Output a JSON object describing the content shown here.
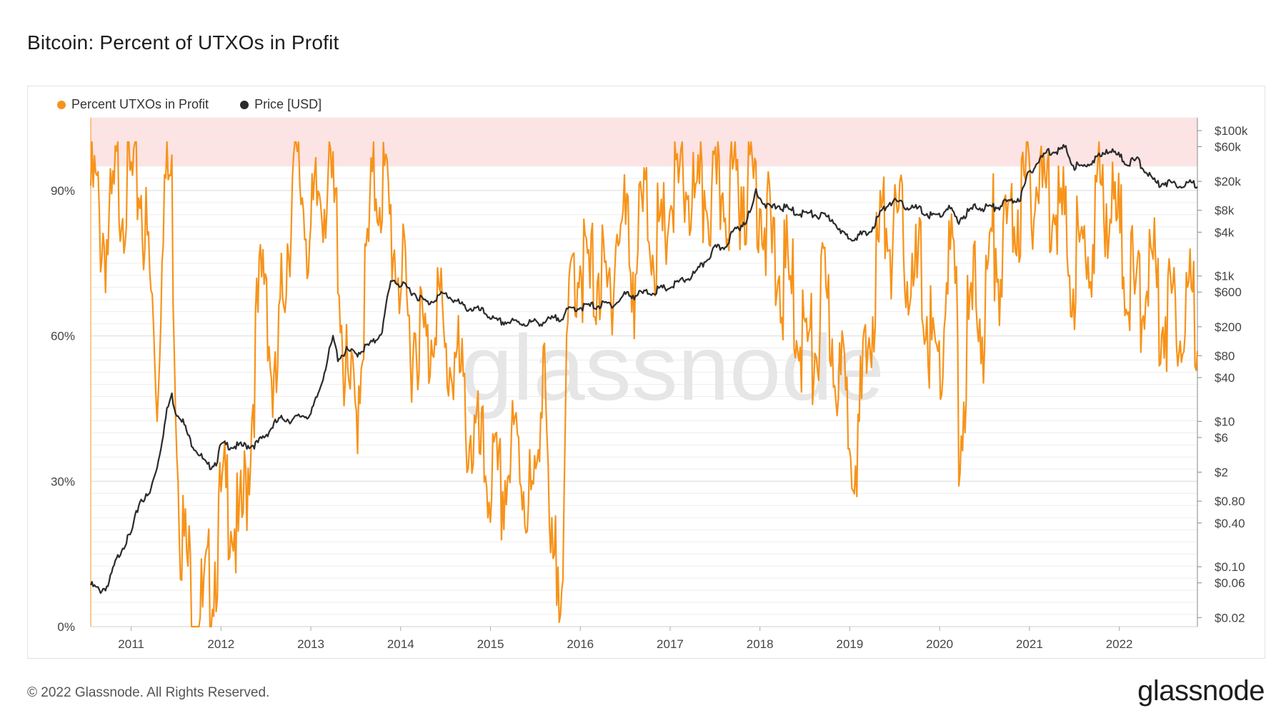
{
  "title": "Bitcoin: Percent of UTXOs in Profit",
  "footer": "© 2022 Glassnode. All Rights Reserved.",
  "brand": "glassnode",
  "watermark": "glassnode",
  "colors": {
    "profit": "#f7931a",
    "price": "#2b2b2b",
    "band": "#fde3e3",
    "grid": "#ededed"
  },
  "legend": [
    {
      "label": "Percent UTXOs in Profit",
      "color": "#f7931a"
    },
    {
      "label": "Price [USD]",
      "color": "#2b2b2b"
    }
  ],
  "chart_data": {
    "type": "line",
    "title": "Bitcoin: Percent of UTXOs in Profit",
    "x_ticks": [
      "2011",
      "2012",
      "2013",
      "2014",
      "2015",
      "2016",
      "2017",
      "2018",
      "2019",
      "2020",
      "2021",
      "2022"
    ],
    "xlim": [
      2010.55,
      2022.87
    ],
    "left_axis": {
      "ticks": [
        "0%",
        "30%",
        "60%",
        "90%"
      ],
      "tick_values": [
        0,
        30,
        60,
        90
      ],
      "ylim": [
        0,
        105
      ]
    },
    "right_axis": {
      "scale": "log",
      "ticks": [
        "$100k",
        "$60k",
        "$20k",
        "$8k",
        "$4k",
        "$1k",
        "$600",
        "$200",
        "$80",
        "$40",
        "$10",
        "$6",
        "$2",
        "$0.80",
        "$0.40",
        "$0.10",
        "$0.06",
        "$0.02"
      ],
      "tick_values": [
        100000,
        60000,
        20000,
        8000,
        4000,
        1000,
        600,
        200,
        80,
        40,
        10,
        6,
        2,
        0.8,
        0.4,
        0.1,
        0.06,
        0.02
      ],
      "ylim": [
        0.015,
        150000
      ]
    },
    "highlight_band": {
      "from": 95,
      "to": 105,
      "axis": "left"
    },
    "series": [
      {
        "name": "Percent UTXOs in Profit",
        "axis": "left",
        "x": [
          2010.55,
          2010.6,
          2010.65,
          2010.75,
          2010.85,
          2011.0,
          2011.1,
          2011.2,
          2011.3,
          2011.35,
          2011.4,
          2011.45,
          2011.5,
          2011.55,
          2011.6,
          2011.7,
          2011.8,
          2011.9,
          2012.0,
          2012.1,
          2012.2,
          2012.3,
          2012.4,
          2012.5,
          2012.55,
          2012.6,
          2012.7,
          2012.8,
          2012.9,
          2013.0,
          2013.1,
          2013.2,
          2013.3,
          2013.35,
          2013.4,
          2013.5,
          2013.6,
          2013.7,
          2013.8,
          2013.9,
          2014.0,
          2014.1,
          2014.2,
          2014.3,
          2014.4,
          2014.5,
          2014.6,
          2014.7,
          2014.8,
          2014.9,
          2015.0,
          2015.1,
          2015.2,
          2015.3,
          2015.4,
          2015.5,
          2015.55,
          2015.6,
          2015.65,
          2015.7,
          2015.8,
          2015.85,
          2015.9,
          2016.0,
          2016.1,
          2016.2,
          2016.3,
          2016.4,
          2016.5,
          2016.6,
          2016.7,
          2016.8,
          2016.9,
          2017.0,
          2017.1,
          2017.2,
          2017.3,
          2017.4,
          2017.5,
          2017.6,
          2017.7,
          2017.8,
          2017.9,
          2018.0,
          2018.1,
          2018.2,
          2018.3,
          2018.4,
          2018.5,
          2018.6,
          2018.7,
          2018.8,
          2018.9,
          2019.0,
          2019.1,
          2019.2,
          2019.3,
          2019.4,
          2019.5,
          2019.6,
          2019.7,
          2019.8,
          2019.9,
          2020.0,
          2020.1,
          2020.2,
          2020.22,
          2020.3,
          2020.4,
          2020.5,
          2020.6,
          2020.7,
          2020.8,
          2020.9,
          2021.0,
          2021.1,
          2021.2,
          2021.3,
          2021.4,
          2021.5,
          2021.6,
          2021.7,
          2021.8,
          2021.9,
          2022.0,
          2022.1,
          2022.2,
          2022.3,
          2022.4,
          2022.5,
          2022.6,
          2022.7,
          2022.8,
          2022.87
        ],
        "values": [
          98,
          96,
          90,
          86,
          99,
          97,
          99,
          80,
          55,
          97,
          99,
          99,
          55,
          30,
          22,
          12,
          9,
          17,
          30,
          35,
          22,
          40,
          68,
          84,
          62,
          50,
          80,
          98,
          98,
          85,
          98,
          99,
          88,
          68,
          55,
          50,
          75,
          99,
          99,
          88,
          80,
          66,
          70,
          62,
          78,
          60,
          64,
          52,
          46,
          40,
          38,
          33,
          40,
          44,
          35,
          30,
          55,
          70,
          20,
          15,
          25,
          55,
          80,
          84,
          76,
          82,
          72,
          88,
          90,
          80,
          92,
          90,
          82,
          96,
          95,
          99,
          90,
          99,
          92,
          99,
          96,
          99,
          99,
          98,
          86,
          80,
          78,
          72,
          65,
          62,
          74,
          68,
          56,
          50,
          46,
          64,
          82,
          93,
          85,
          88,
          75,
          80,
          65,
          58,
          84,
          70,
          40,
          65,
          76,
          70,
          88,
          80,
          92,
          95,
          99,
          98,
          96,
          99,
          85,
          82,
          82,
          88,
          98,
          95,
          88,
          80,
          72,
          82,
          77,
          72,
          74,
          73,
          72,
          74
        ]
      },
      {
        "name": "Price [USD]",
        "axis": "right",
        "x": [
          2010.55,
          2010.65,
          2010.75,
          2010.8,
          2010.9,
          2011.0,
          2011.1,
          2011.2,
          2011.3,
          2011.4,
          2011.45,
          2011.5,
          2011.55,
          2011.65,
          2011.75,
          2011.85,
          2011.95,
          2012.0,
          2012.1,
          2012.2,
          2012.3,
          2012.4,
          2012.5,
          2012.6,
          2012.7,
          2012.8,
          2012.9,
          2013.0,
          2013.1,
          2013.2,
          2013.25,
          2013.3,
          2013.4,
          2013.5,
          2013.6,
          2013.7,
          2013.8,
          2013.85,
          2013.9,
          2014.0,
          2014.1,
          2014.2,
          2014.3,
          2014.4,
          2014.5,
          2014.6,
          2014.7,
          2014.8,
          2014.9,
          2015.0,
          2015.05,
          2015.2,
          2015.4,
          2015.6,
          2015.7,
          2015.8,
          2015.9,
          2016.0,
          2016.2,
          2016.4,
          2016.5,
          2016.6,
          2016.8,
          2017.0,
          2017.2,
          2017.3,
          2017.4,
          2017.5,
          2017.6,
          2017.7,
          2017.8,
          2017.9,
          2017.96,
          2018.0,
          2018.1,
          2018.2,
          2018.4,
          2018.6,
          2018.8,
          2018.85,
          2018.9,
          2019.0,
          2019.2,
          2019.35,
          2019.45,
          2019.6,
          2019.8,
          2019.9,
          2020.0,
          2020.1,
          2020.2,
          2020.25,
          2020.4,
          2020.6,
          2020.8,
          2020.9,
          2021.0,
          2021.1,
          2021.2,
          2021.3,
          2021.4,
          2021.5,
          2021.6,
          2021.7,
          2021.8,
          2021.85,
          2021.9,
          2022.0,
          2022.1,
          2022.2,
          2022.3,
          2022.4,
          2022.5,
          2022.6,
          2022.7,
          2022.87
        ],
        "values": [
          0.06,
          0.05,
          0.06,
          0.1,
          0.2,
          0.3,
          0.9,
          1.0,
          3.0,
          15,
          25,
          14,
          13,
          6,
          4,
          2.5,
          3,
          5,
          5,
          4.8,
          5,
          5.2,
          7,
          10,
          12,
          11,
          13,
          13,
          30,
          90,
          150,
          80,
          100,
          90,
          110,
          130,
          200,
          500,
          1000,
          800,
          700,
          550,
          450,
          550,
          600,
          500,
          400,
          380,
          350,
          300,
          250,
          250,
          240,
          250,
          270,
          300,
          380,
          400,
          420,
          450,
          600,
          580,
          650,
          750,
          1000,
          1200,
          1800,
          2500,
          2700,
          4200,
          5500,
          8000,
          17000,
          13000,
          9000,
          10000,
          8000,
          7500,
          6500,
          5800,
          4000,
          3700,
          4000,
          8000,
          11500,
          10000,
          8500,
          7200,
          7200,
          9500,
          6000,
          7000,
          9500,
          9300,
          11500,
          13000,
          29000,
          40000,
          55000,
          58000,
          60000,
          35000,
          33000,
          42000,
          47000,
          60000,
          57000,
          47000,
          38000,
          42000,
          30000,
          20000,
          21000,
          20000,
          19500,
          20000
        ]
      }
    ]
  }
}
